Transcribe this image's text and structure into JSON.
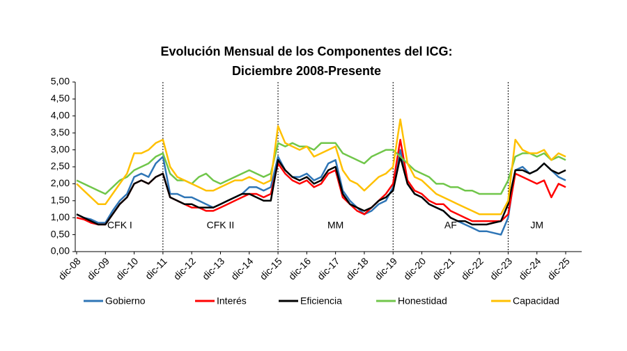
{
  "chart_data": {
    "type": "line",
    "title": "Evolución Mensual de los Componentes del ICG:",
    "subtitle": "Diciembre 2008-Presente",
    "categories": [
      "dic-08",
      null,
      null,
      null,
      "dic-09",
      null,
      null,
      null,
      "dic-10",
      null,
      null,
      null,
      "dic-11",
      null,
      null,
      null,
      "dic-12",
      null,
      null,
      null,
      "dic-13",
      null,
      null,
      null,
      "dic-14",
      null,
      null,
      null,
      "dic-15",
      null,
      null,
      null,
      "dic-16",
      null,
      null,
      null,
      "dic-17",
      null,
      null,
      null,
      "dic-18",
      null,
      null,
      null,
      "dic-19",
      null,
      null,
      null,
      "dic-20",
      null,
      null,
      null,
      "dic-21",
      null,
      null,
      null,
      "dic-22",
      null,
      null,
      null,
      "dic-23",
      null,
      null,
      null,
      "dic-24",
      null,
      null,
      null,
      "dic-25"
    ],
    "series": [
      {
        "name": "Gobierno",
        "color": "#2e75b6",
        "values": [
          1.1,
          1.0,
          0.95,
          0.85,
          0.85,
          1.2,
          1.5,
          1.7,
          2.2,
          2.3,
          2.2,
          2.6,
          2.8,
          1.7,
          1.7,
          1.6,
          1.6,
          1.5,
          1.4,
          1.3,
          1.4,
          1.5,
          1.6,
          1.7,
          1.9,
          1.9,
          1.8,
          1.9,
          2.8,
          2.4,
          2.2,
          2.2,
          2.3,
          2.1,
          2.2,
          2.6,
          2.7,
          1.8,
          1.5,
          1.3,
          1.1,
          1.2,
          1.4,
          1.5,
          1.9,
          3.0,
          2.0,
          1.7,
          1.6,
          1.4,
          1.3,
          1.2,
          1.0,
          0.9,
          0.8,
          0.7,
          0.6,
          0.6,
          0.55,
          0.5,
          1.0,
          2.4,
          2.5,
          2.3,
          2.4,
          2.6,
          2.4,
          2.2,
          2.1
        ]
      },
      {
        "name": "Interés",
        "color": "#ff0000",
        "values": [
          1.0,
          0.95,
          0.85,
          0.8,
          0.8,
          1.1,
          1.4,
          1.6,
          2.0,
          2.1,
          2.0,
          2.2,
          2.3,
          1.6,
          1.5,
          1.4,
          1.3,
          1.3,
          1.2,
          1.2,
          1.3,
          1.4,
          1.5,
          1.6,
          1.7,
          1.7,
          1.6,
          1.7,
          2.6,
          2.3,
          2.1,
          2.0,
          2.1,
          1.9,
          2.0,
          2.3,
          2.4,
          1.6,
          1.4,
          1.2,
          1.1,
          1.3,
          1.5,
          1.7,
          2.0,
          3.3,
          2.1,
          1.8,
          1.7,
          1.5,
          1.4,
          1.4,
          1.2,
          1.1,
          1.0,
          0.9,
          0.9,
          0.9,
          0.9,
          0.9,
          1.1,
          2.3,
          2.2,
          2.1,
          2.0,
          2.1,
          1.6,
          2.0,
          1.9
        ]
      },
      {
        "name": "Eficiencia",
        "color": "#000000",
        "values": [
          1.1,
          1.0,
          0.9,
          0.8,
          0.8,
          1.1,
          1.4,
          1.6,
          2.0,
          2.1,
          2.0,
          2.2,
          2.3,
          1.6,
          1.5,
          1.4,
          1.4,
          1.3,
          1.3,
          1.3,
          1.4,
          1.5,
          1.6,
          1.7,
          1.7,
          1.6,
          1.5,
          1.5,
          2.7,
          2.4,
          2.2,
          2.1,
          2.2,
          2.0,
          2.1,
          2.4,
          2.5,
          1.7,
          1.4,
          1.3,
          1.2,
          1.3,
          1.5,
          1.6,
          1.8,
          2.8,
          2.0,
          1.7,
          1.6,
          1.4,
          1.3,
          1.2,
          1.0,
          0.9,
          0.9,
          0.8,
          0.8,
          0.8,
          0.85,
          0.9,
          1.4,
          2.4,
          2.4,
          2.3,
          2.4,
          2.6,
          2.4,
          2.3,
          2.4
        ]
      },
      {
        "name": "Honestidad",
        "color": "#70c64a",
        "values": [
          2.1,
          2.0,
          1.9,
          1.8,
          1.7,
          1.9,
          2.1,
          2.2,
          2.4,
          2.5,
          2.6,
          2.8,
          2.9,
          2.3,
          2.1,
          2.1,
          2.0,
          2.2,
          2.3,
          2.1,
          2.0,
          2.1,
          2.2,
          2.3,
          2.4,
          2.3,
          2.2,
          2.3,
          3.2,
          3.1,
          3.2,
          3.1,
          3.1,
          3.0,
          3.2,
          3.2,
          3.2,
          2.9,
          2.8,
          2.7,
          2.6,
          2.8,
          2.9,
          3.0,
          3.0,
          2.8,
          2.6,
          2.4,
          2.3,
          2.2,
          2.0,
          2.0,
          1.9,
          1.9,
          1.8,
          1.8,
          1.7,
          1.7,
          1.7,
          1.7,
          2.1,
          2.8,
          2.9,
          2.9,
          2.8,
          2.9,
          2.7,
          2.8,
          2.7
        ]
      },
      {
        "name": "Capacidad",
        "color": "#ffc000",
        "values": [
          2.0,
          1.8,
          1.6,
          1.4,
          1.4,
          1.7,
          2.0,
          2.3,
          2.9,
          2.9,
          3.0,
          3.2,
          3.3,
          2.5,
          2.2,
          2.1,
          2.0,
          1.9,
          1.8,
          1.8,
          1.9,
          2.0,
          2.1,
          2.1,
          2.2,
          2.1,
          2.0,
          2.1,
          3.7,
          3.2,
          3.1,
          3.0,
          3.1,
          2.8,
          2.9,
          3.0,
          3.1,
          2.4,
          2.1,
          2.0,
          1.8,
          2.0,
          2.2,
          2.3,
          2.5,
          3.9,
          2.6,
          2.2,
          2.1,
          1.9,
          1.7,
          1.6,
          1.5,
          1.4,
          1.3,
          1.2,
          1.1,
          1.1,
          1.1,
          1.1,
          1.5,
          3.3,
          3.0,
          2.9,
          2.9,
          3.0,
          2.7,
          2.9,
          2.8
        ]
      }
    ],
    "ylim": [
      0,
      5
    ],
    "yticks": [
      {
        "value": 0,
        "label": "0,00"
      },
      {
        "value": 0.5,
        "label": "0,50"
      },
      {
        "value": 1,
        "label": "1,00"
      },
      {
        "value": 1.5,
        "label": "1,50"
      },
      {
        "value": 2,
        "label": "2,00"
      },
      {
        "value": 2.5,
        "label": "2,50"
      },
      {
        "value": 3,
        "label": "3,00"
      },
      {
        "value": 3.5,
        "label": "3,50"
      },
      {
        "value": 4,
        "label": "4,00"
      },
      {
        "value": 4.5,
        "label": "4,50"
      },
      {
        "value": 5,
        "label": "5,00"
      }
    ],
    "periods": [
      {
        "label": "CFK I",
        "start": "dic-08",
        "end": "dic-11"
      },
      {
        "label": "CFK II",
        "start": "dic-11",
        "end": "dic-15"
      },
      {
        "label": "MM",
        "start": "dic-15",
        "end": "dic-19"
      },
      {
        "label": "AF",
        "start": "dic-19",
        "end": "dic-23"
      },
      {
        "label": "JM",
        "start": "dic-23",
        "end": "dic-25"
      }
    ],
    "legend": "bottom"
  }
}
